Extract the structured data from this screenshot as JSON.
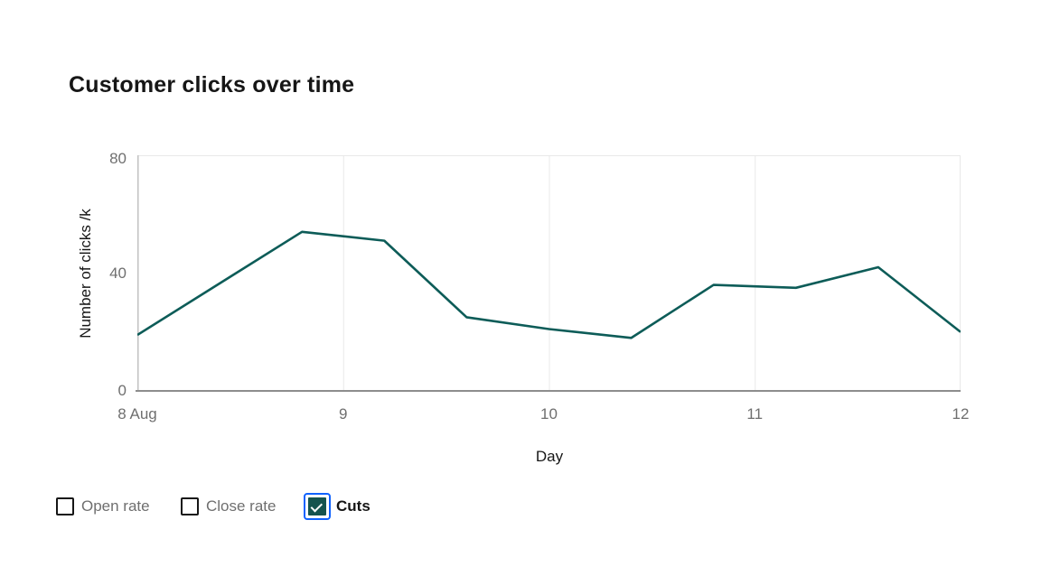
{
  "title": "Customer clicks over time",
  "colors": {
    "line": "#0d5c58",
    "checkbox_checked_fill": "#15534e",
    "focus_blue": "#0f62fe",
    "text_primary": "#161616",
    "text_secondary": "#6f6f6f",
    "grid": "#e8e8e8",
    "axis_left": "#c2c2c2",
    "axis_bottom": "#8d8d8d"
  },
  "chart_data": {
    "type": "line",
    "title": "Customer clicks over time",
    "xlabel": "Day",
    "ylabel": "Number of clicks /k",
    "xlim": [
      8,
      12
    ],
    "ylim": [
      0,
      80
    ],
    "x_tick_days": [
      8,
      9,
      10,
      11,
      12
    ],
    "x_ticks": [
      "8 Aug",
      "9",
      "10",
      "11",
      "12"
    ],
    "y_ticks": [
      0,
      40,
      80
    ],
    "grid": "vertical-only",
    "grid_days": [
      9,
      10,
      11
    ],
    "legend_position": "bottom-left",
    "series": [
      {
        "name": "Cuts",
        "color": "#0d5c58",
        "x": [
          8.0,
          8.8,
          9.2,
          9.6,
          10.0,
          10.4,
          10.8,
          11.2,
          11.6,
          12.0
        ],
        "values": [
          19,
          54,
          51,
          25,
          21,
          18,
          36,
          35,
          42,
          20
        ]
      }
    ]
  },
  "legend": {
    "items": [
      {
        "label": "Open rate",
        "checked": false
      },
      {
        "label": "Close rate",
        "checked": false
      },
      {
        "label": "Cuts",
        "checked": true,
        "focused": true
      }
    ]
  }
}
